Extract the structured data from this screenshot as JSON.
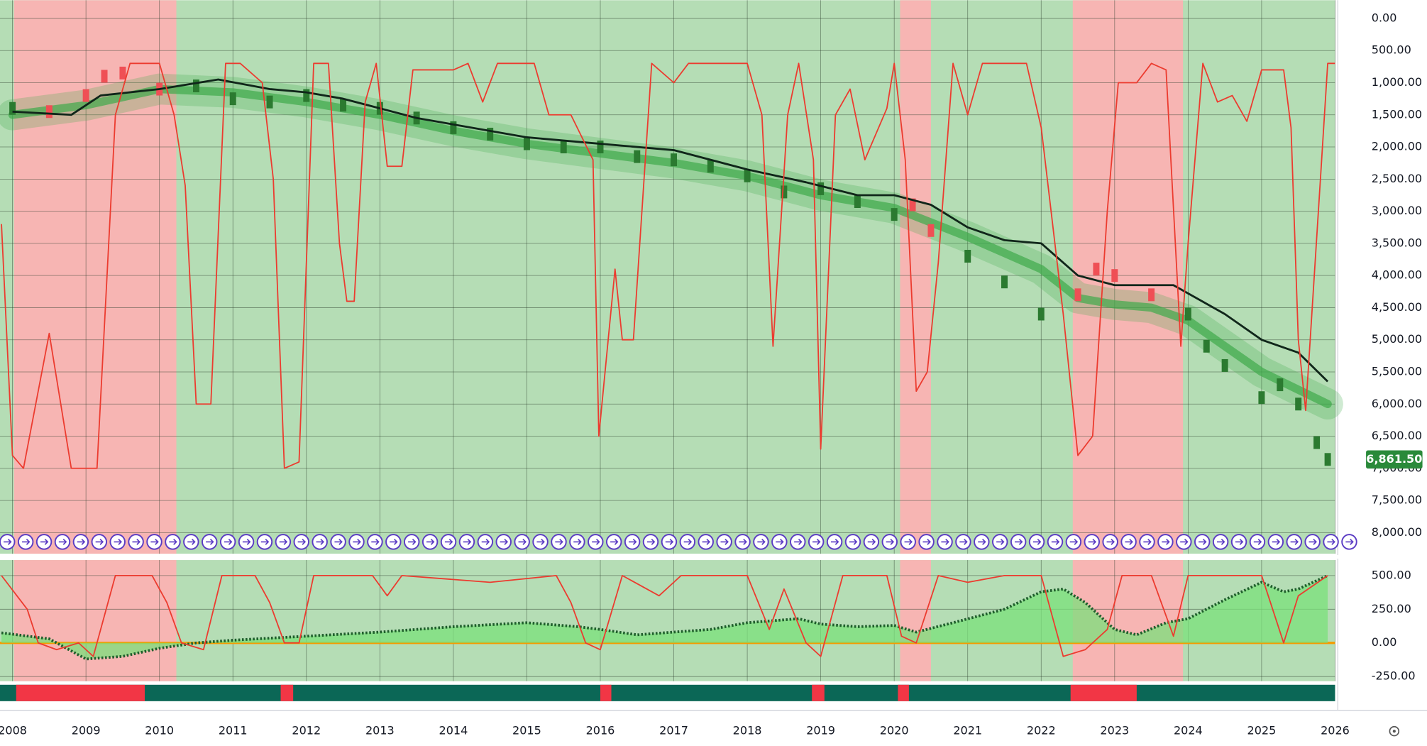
{
  "chart_data": [
    {
      "type": "line",
      "xlim": [
        2007.83,
        2026.0
      ],
      "xticks": [
        2008,
        2009,
        2010,
        2011,
        2012,
        2013,
        2014,
        2015,
        2016,
        2017,
        2018,
        2019,
        2020,
        2021,
        2022,
        2023,
        2024,
        2025,
        2026
      ],
      "ylim": [
        -283,
        8328
      ],
      "y_inverted": true,
      "grid": true,
      "yticks": [
        {
          "value": 0,
          "label": "0.00"
        },
        {
          "value": 500,
          "label": "500.00"
        },
        {
          "value": 1000,
          "label": "1,000.00"
        },
        {
          "value": 1500,
          "label": "1,500.00"
        },
        {
          "value": 2000,
          "label": "2,000.00"
        },
        {
          "value": 2500,
          "label": "2,500.00"
        },
        {
          "value": 3000,
          "label": "3,000.00"
        },
        {
          "value": 3500,
          "label": "3,500.00"
        },
        {
          "value": 4000,
          "label": "4,000.00"
        },
        {
          "value": 4500,
          "label": "4,500.00"
        },
        {
          "value": 5000,
          "label": "5,000.00"
        },
        {
          "value": 5500,
          "label": "5,500.00"
        },
        {
          "value": 6000,
          "label": "6,000.00"
        },
        {
          "value": 6500,
          "label": "6,500.00"
        },
        {
          "value": 7000,
          "label": "7,000.00"
        },
        {
          "value": 7500,
          "label": "7,500.00"
        },
        {
          "value": 8000,
          "label": "8,000.00"
        }
      ],
      "last_value": {
        "value": 6861.5,
        "label": "6,861.50",
        "color": "#2a8a3a"
      },
      "background": "#b5ddb5",
      "region_color": "#f7b5b3",
      "shaded_regions": [
        {
          "start": 2008.02,
          "end": 2010.23
        },
        {
          "start": 2020.08,
          "end": 2020.5
        },
        {
          "start": 2022.43,
          "end": 2023.93
        }
      ],
      "signal_strip": {
        "base_color": "#0b6756",
        "color": "#f23645",
        "periods": [
          {
            "start": 2008.05,
            "end": 2009.8
          },
          {
            "start": 2011.65,
            "end": 2011.82
          },
          {
            "start": 2016.0,
            "end": 2016.15
          },
          {
            "start": 2018.88,
            "end": 2019.05
          },
          {
            "start": 2020.05,
            "end": 2020.2
          },
          {
            "start": 2022.4,
            "end": 2023.3
          }
        ]
      },
      "series": [
        {
          "style": "band",
          "color": "#3faa4a",
          "x": [
            2008,
            2009,
            2010,
            2011,
            2012,
            2013,
            2014,
            2015,
            2016,
            2017,
            2018,
            2019,
            2020,
            2021,
            2022,
            2022.5,
            2023,
            2023.5,
            2024,
            2024.5,
            2025,
            2025.9
          ],
          "values": [
            1500,
            1350,
            1100,
            1150,
            1300,
            1500,
            1750,
            1950,
            2100,
            2250,
            2450,
            2750,
            2950,
            3400,
            3900,
            4350,
            4450,
            4500,
            4700,
            5100,
            5500,
            6000
          ]
        },
        {
          "style": "squares",
          "color": "#2b7a30",
          "alt_color": "#ef4f55",
          "x": [
            2008,
            2008.5,
            2009,
            2009.25,
            2009.5,
            2010,
            2010.5,
            2011,
            2011.5,
            2012,
            2012.5,
            2013,
            2013.5,
            2014,
            2014.5,
            2015,
            2015.5,
            2016,
            2016.5,
            2017,
            2017.5,
            2018,
            2018.5,
            2019,
            2019.5,
            2020,
            2020.25,
            2020.5,
            2021,
            2021.5,
            2022,
            2022.5,
            2022.75,
            2023,
            2023.5,
            2024,
            2024.25,
            2024.5,
            2025,
            2025.25,
            2025.5,
            2025.75,
            2025.9
          ],
          "values": [
            1400,
            1450,
            1200,
            900,
            850,
            1100,
            1050,
            1250,
            1300,
            1200,
            1350,
            1400,
            1550,
            1700,
            1800,
            1950,
            2000,
            2000,
            2150,
            2200,
            2300,
            2450,
            2700,
            2650,
            2850,
            3050,
            2900,
            3300,
            3700,
            4100,
            4600,
            4300,
            3900,
            4000,
            4300,
            4600,
            5100,
            5400,
            5900,
            5700,
            6000,
            6600,
            6861.5
          ]
        },
        {
          "style": "line",
          "color": "#10261a",
          "x": [
            2008,
            2008.8,
            2009.2,
            2010,
            2010.8,
            2011.5,
            2012,
            2012.5,
            2013,
            2013.5,
            2014,
            2015,
            2016,
            2017,
            2018,
            2018.8,
            2019.5,
            2020,
            2020.5,
            2021,
            2021.5,
            2022,
            2022.5,
            2023,
            2023.8,
            2024.5,
            2025,
            2025.5,
            2025.9
          ],
          "values": [
            1450,
            1500,
            1200,
            1100,
            950,
            1100,
            1150,
            1250,
            1400,
            1550,
            1650,
            1850,
            1950,
            2050,
            2350,
            2550,
            2750,
            2750,
            2900,
            3250,
            3450,
            3500,
            4000,
            4150,
            4150,
            4600,
            5000,
            5200,
            5650
          ]
        },
        {
          "style": "line",
          "color": "#ec3b2f",
          "x": [
            2007.85,
            2008.0,
            2008.15,
            2008.5,
            2008.8,
            2009.15,
            2009.4,
            2009.6,
            2010.0,
            2010.2,
            2010.35,
            2010.5,
            2010.7,
            2010.9,
            2011.1,
            2011.4,
            2011.55,
            2011.7,
            2011.9,
            2012.1,
            2012.3,
            2012.45,
            2012.55,
            2012.65,
            2012.8,
            2012.95,
            2013.1,
            2013.3,
            2013.45,
            2014.0,
            2014.2,
            2014.4,
            2014.6,
            2014.9,
            2015.1,
            2015.3,
            2015.6,
            2015.9,
            2015.98,
            2016.2,
            2016.3,
            2016.45,
            2016.7,
            2017.0,
            2017.2,
            2018.0,
            2018.2,
            2018.35,
            2018.55,
            2018.7,
            2018.9,
            2019.0,
            2019.2,
            2019.4,
            2019.6,
            2019.9,
            2020.0,
            2020.15,
            2020.3,
            2020.45,
            2020.6,
            2020.8,
            2021.0,
            2021.2,
            2021.8,
            2022.0,
            2022.3,
            2022.5,
            2022.7,
            2022.9,
            2023.05,
            2023.3,
            2023.5,
            2023.7,
            2023.9,
            2024.0,
            2024.2,
            2024.4,
            2024.6,
            2024.8,
            2025.0,
            2025.3,
            2025.4,
            2025.5,
            2025.6,
            2025.8,
            2025.9,
            2026.0
          ],
          "values": [
            3200,
            6800,
            7000,
            4900,
            7000,
            7000,
            1500,
            700,
            700,
            1500,
            2600,
            6000,
            6000,
            700,
            700,
            1000,
            2500,
            7000,
            6900,
            700,
            700,
            3500,
            4400,
            4400,
            1300,
            700,
            2300,
            2300,
            800,
            800,
            700,
            1300,
            700,
            700,
            700,
            1500,
            1500,
            2200,
            6500,
            3900,
            5000,
            5000,
            700,
            1000,
            700,
            700,
            1500,
            5100,
            1500,
            700,
            2200,
            6700,
            1500,
            1100,
            2200,
            1400,
            700,
            2200,
            5800,
            5500,
            3800,
            700,
            1500,
            700,
            700,
            1700,
            4600,
            6800,
            6500,
            3000,
            1000,
            1000,
            700,
            800,
            5100,
            3500,
            700,
            1300,
            1200,
            1600,
            800,
            800,
            1700,
            5000,
            6100,
            2500,
            700,
            700
          ]
        }
      ]
    },
    {
      "type": "line",
      "ylim": [
        -284,
        615
      ],
      "grid": true,
      "zero_line_color": "#f59b00",
      "yticks": [
        {
          "value": 500,
          "label": "500.00"
        },
        {
          "value": 250,
          "label": "250.00"
        },
        {
          "value": 0,
          "label": "0.00"
        },
        {
          "value": -250,
          "label": "-250.00"
        }
      ],
      "series": [
        {
          "style": "dotted-area",
          "color": "#1f5e2c",
          "fill": "#7be07b",
          "x": [
            2007.85,
            2008.5,
            2009,
            2009.5,
            2010,
            2010.5,
            2011,
            2012,
            2013,
            2014,
            2015,
            2015.7,
            2016,
            2016.5,
            2017,
            2017.5,
            2018,
            2018.7,
            2019,
            2019.5,
            2020,
            2020.3,
            2020.8,
            2021.5,
            2022,
            2022.3,
            2022.6,
            2023,
            2023.3,
            2023.7,
            2024,
            2024.5,
            2025,
            2025.3,
            2025.5,
            2025.9
          ],
          "values": [
            75,
            30,
            -120,
            -100,
            -40,
            0,
            20,
            50,
            80,
            120,
            150,
            120,
            100,
            60,
            80,
            100,
            150,
            180,
            140,
            120,
            130,
            80,
            150,
            250,
            380,
            400,
            300,
            100,
            60,
            150,
            180,
            320,
            450,
            380,
            400,
            500
          ]
        },
        {
          "style": "line",
          "color": "#ec3b2f",
          "x": [
            2007.85,
            2008.2,
            2008.35,
            2008.6,
            2008.9,
            2009.1,
            2009.4,
            2009.9,
            2010.1,
            2010.3,
            2010.6,
            2010.85,
            2011.3,
            2011.5,
            2011.7,
            2011.9,
            2012.1,
            2012.9,
            2013.1,
            2013.3,
            2014.5,
            2015.4,
            2015.6,
            2015.8,
            2016.0,
            2016.3,
            2016.8,
            2017.1,
            2018.0,
            2018.3,
            2018.5,
            2018.8,
            2019.0,
            2019.3,
            2019.9,
            2020.1,
            2020.3,
            2020.6,
            2021.0,
            2021.5,
            2022.0,
            2022.1,
            2022.3,
            2022.6,
            2022.9,
            2023.1,
            2023.5,
            2023.8,
            2024.0,
            2025.0,
            2025.3,
            2025.5,
            2025.9
          ],
          "values": [
            500,
            250,
            0,
            -50,
            0,
            -100,
            500,
            500,
            300,
            0,
            -50,
            500,
            500,
            300,
            0,
            0,
            500,
            500,
            350,
            500,
            450,
            500,
            300,
            0,
            -50,
            500,
            350,
            500,
            500,
            100,
            400,
            0,
            -100,
            500,
            500,
            50,
            0,
            500,
            450,
            500,
            500,
            300,
            -100,
            -50,
            100,
            500,
            500,
            50,
            500,
            500,
            0,
            350,
            500
          ]
        }
      ]
    }
  ]
}
